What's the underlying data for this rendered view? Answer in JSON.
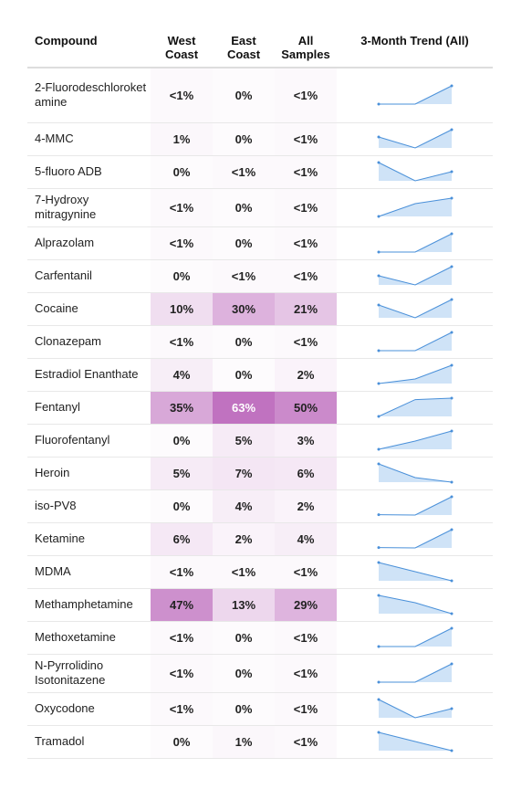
{
  "chart_data": {
    "type": "table",
    "columns": {
      "compound": "Compound",
      "west": "West Coast",
      "east": "East Coast",
      "all": "All Samples",
      "trend": "3-Month Trend (All)"
    },
    "colors": {
      "heat": "#c072c0",
      "spark_line": "#4a90d9",
      "spark_fill": "#cfe3f7",
      "row_border": "#e8e8e8"
    },
    "rows": [
      {
        "compound": "2-Fluorodeschloroketamine",
        "west": "<1%",
        "east": "0%",
        "all": "<1%",
        "west_v": 0.5,
        "east_v": 0,
        "all_v": 0.5,
        "trend": [
          0,
          0,
          1
        ]
      },
      {
        "compound": "4-MMC",
        "west": "1%",
        "east": "0%",
        "all": "<1%",
        "west_v": 1,
        "east_v": 0,
        "all_v": 0.5,
        "trend": [
          0.6,
          0,
          1
        ]
      },
      {
        "compound": "5-fluoro ADB",
        "west": "0%",
        "east": "<1%",
        "all": "<1%",
        "west_v": 0,
        "east_v": 0.5,
        "all_v": 0.5,
        "trend": [
          1,
          0,
          0.5
        ]
      },
      {
        "compound": "7-Hydroxy mitragynine",
        "west": "<1%",
        "east": "0%",
        "all": "<1%",
        "west_v": 0.5,
        "east_v": 0,
        "all_v": 0.5,
        "trend": [
          0,
          0.7,
          1
        ]
      },
      {
        "compound": "Alprazolam",
        "west": "<1%",
        "east": "0%",
        "all": "<1%",
        "west_v": 0.5,
        "east_v": 0,
        "all_v": 0.5,
        "trend": [
          0,
          0,
          1
        ]
      },
      {
        "compound": "Carfentanil",
        "west": "0%",
        "east": "<1%",
        "all": "<1%",
        "west_v": 0,
        "east_v": 0.5,
        "all_v": 0.5,
        "trend": [
          0.5,
          0,
          1
        ]
      },
      {
        "compound": "Cocaine",
        "west": "10%",
        "east": "30%",
        "all": "21%",
        "west_v": 10,
        "east_v": 30,
        "all_v": 21,
        "trend": [
          0.7,
          0,
          1
        ]
      },
      {
        "compound": "Clonazepam",
        "west": "<1%",
        "east": "0%",
        "all": "<1%",
        "west_v": 0.5,
        "east_v": 0,
        "all_v": 0.5,
        "trend": [
          0,
          0,
          1
        ]
      },
      {
        "compound": "Estradiol Enanthate",
        "west": "4%",
        "east": "0%",
        "all": "2%",
        "west_v": 4,
        "east_v": 0,
        "all_v": 2,
        "trend": [
          0,
          0.25,
          1
        ]
      },
      {
        "compound": "Fentanyl",
        "west": "35%",
        "east": "63%",
        "all": "50%",
        "west_v": 35,
        "east_v": 63,
        "all_v": 50,
        "trend": [
          0,
          0.92,
          1
        ]
      },
      {
        "compound": "Fluorofentanyl",
        "west": "0%",
        "east": "5%",
        "all": "3%",
        "west_v": 0,
        "east_v": 5,
        "all_v": 3,
        "trend": [
          0,
          0.45,
          1
        ]
      },
      {
        "compound": "Heroin",
        "west": "5%",
        "east": "7%",
        "all": "6%",
        "west_v": 5,
        "east_v": 7,
        "all_v": 6,
        "trend": [
          1,
          0.25,
          0
        ]
      },
      {
        "compound": "iso-PV8",
        "west": "0%",
        "east": "4%",
        "all": "2%",
        "west_v": 0,
        "east_v": 4,
        "all_v": 2,
        "trend": [
          0.02,
          0,
          1
        ]
      },
      {
        "compound": "Ketamine",
        "west": "6%",
        "east": "2%",
        "all": "4%",
        "west_v": 6,
        "east_v": 2,
        "all_v": 4,
        "trend": [
          0.02,
          0,
          1
        ]
      },
      {
        "compound": "MDMA",
        "west": "<1%",
        "east": "<1%",
        "all": "<1%",
        "west_v": 0.5,
        "east_v": 0.5,
        "all_v": 0.5,
        "trend": [
          1,
          0.5,
          0
        ]
      },
      {
        "compound": "Methamphetamine",
        "west": "47%",
        "east": "13%",
        "all": "29%",
        "west_v": 47,
        "east_v": 13,
        "all_v": 29,
        "trend": [
          1,
          0.6,
          0
        ]
      },
      {
        "compound": "Methoxetamine",
        "west": "<1%",
        "east": "0%",
        "all": "<1%",
        "west_v": 0.5,
        "east_v": 0,
        "all_v": 0.5,
        "trend": [
          0,
          0,
          1
        ]
      },
      {
        "compound": "N-Pyrrolidino Isotonitazene",
        "west": "<1%",
        "east": "0%",
        "all": "<1%",
        "west_v": 0.5,
        "east_v": 0,
        "all_v": 0.5,
        "trend": [
          0,
          0,
          1
        ]
      },
      {
        "compound": "Oxycodone",
        "west": "<1%",
        "east": "0%",
        "all": "<1%",
        "west_v": 0.5,
        "east_v": 0,
        "all_v": 0.5,
        "trend": [
          1,
          0,
          0.5
        ]
      },
      {
        "compound": "Tramadol",
        "west": "0%",
        "east": "1%",
        "all": "<1%",
        "west_v": 0,
        "east_v": 1,
        "all_v": 0.5,
        "trend": [
          1,
          0.5,
          0
        ]
      }
    ]
  }
}
